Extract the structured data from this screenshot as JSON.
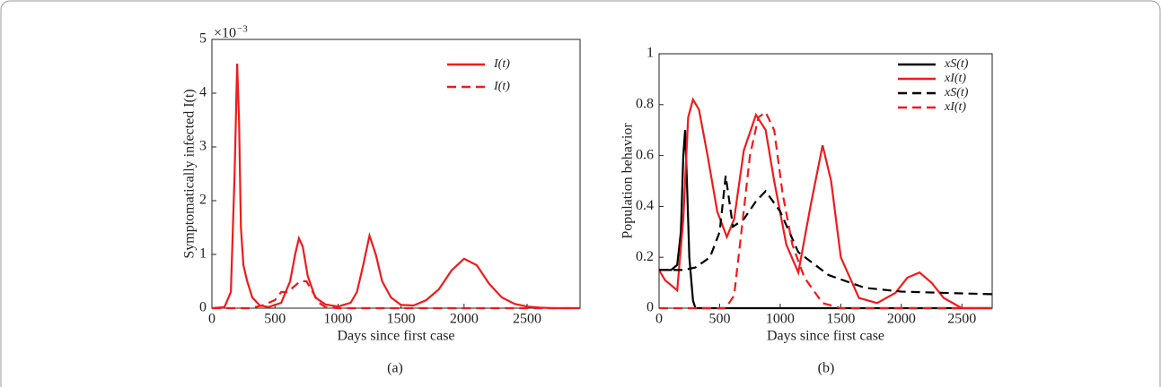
{
  "chart_data": [
    {
      "type": "line",
      "title": "(a)",
      "xlabel": "Days since first case",
      "ylabel": "Symptomatically infected I(t)",
      "multiplier": "×10",
      "multiplier_exponent": "−3",
      "xlim": [
        0,
        2920
      ],
      "xticks": [
        0,
        500,
        1000,
        1500,
        2000,
        2500
      ],
      "ylim": [
        0,
        5
      ],
      "yticks": [
        0,
        1,
        2,
        3,
        4,
        5
      ],
      "legend": "upper right",
      "series": [
        {
          "name": "I(t)",
          "color": "#ee1c1c",
          "linestyle": "solid",
          "x": [
            0,
            100,
            150,
            180,
            200,
            215,
            230,
            250,
            280,
            320,
            380,
            450,
            550,
            620,
            660,
            690,
            720,
            760,
            820,
            900,
            1000,
            1100,
            1150,
            1200,
            1250,
            1300,
            1350,
            1420,
            1500,
            1600,
            1700,
            1800,
            1900,
            2000,
            2100,
            2200,
            2300,
            2400,
            2500,
            2600,
            2700,
            2800,
            2920
          ],
          "values": [
            0,
            0.02,
            0.3,
            2.5,
            4.55,
            3.5,
            1.5,
            0.8,
            0.5,
            0.2,
            0.05,
            0.02,
            0.1,
            0.5,
            1.0,
            1.3,
            1.15,
            0.6,
            0.2,
            0.07,
            0.03,
            0.1,
            0.3,
            0.8,
            1.35,
            1.0,
            0.5,
            0.2,
            0.06,
            0.05,
            0.15,
            0.35,
            0.7,
            0.92,
            0.8,
            0.45,
            0.2,
            0.08,
            0.03,
            0.01,
            0,
            0,
            0
          ]
        },
        {
          "name": "I(t)",
          "color": "#ee1c1c",
          "linestyle": "dashed",
          "x": [
            0,
            300,
            400,
            500,
            550,
            600,
            650,
            700,
            750,
            800,
            850,
            900,
            1000,
            2920
          ],
          "values": [
            0,
            0,
            0.05,
            0.15,
            0.3,
            0.3,
            0.4,
            0.5,
            0.5,
            0.3,
            0.1,
            0.02,
            0,
            0
          ]
        }
      ]
    },
    {
      "type": "line",
      "title": "(b)",
      "xlabel": "Days since first case",
      "ylabel": "Population behavior",
      "xlim": [
        0,
        2750
      ],
      "xticks": [
        0,
        500,
        1000,
        1500,
        2000,
        2500
      ],
      "ylim": [
        0,
        1
      ],
      "yticks": [
        0,
        0.2,
        0.4,
        0.6,
        0.8,
        1
      ],
      "legend": "upper right",
      "series": [
        {
          "name": "xS(t)",
          "color": "#000000",
          "linestyle": "solid",
          "x": [
            0,
            100,
            150,
            180,
            200,
            215,
            230,
            250,
            280,
            300,
            2750
          ],
          "values": [
            0.15,
            0.15,
            0.17,
            0.3,
            0.6,
            0.7,
            0.5,
            0.2,
            0.03,
            0,
            0
          ]
        },
        {
          "name": "xI(t)",
          "color": "#ee1c1c",
          "linestyle": "solid",
          "x": [
            0,
            50,
            100,
            150,
            200,
            240,
            280,
            330,
            400,
            480,
            560,
            620,
            700,
            800,
            880,
            950,
            1050,
            1150,
            1250,
            1350,
            1420,
            1500,
            1650,
            1800,
            1950,
            2050,
            2150,
            2250,
            2350,
            2500,
            2750
          ],
          "values": [
            0.15,
            0.11,
            0.09,
            0.07,
            0.35,
            0.75,
            0.82,
            0.78,
            0.6,
            0.38,
            0.28,
            0.35,
            0.62,
            0.76,
            0.7,
            0.5,
            0.25,
            0.14,
            0.4,
            0.64,
            0.5,
            0.2,
            0.04,
            0.02,
            0.06,
            0.12,
            0.14,
            0.1,
            0.04,
            0,
            0
          ]
        },
        {
          "name": "xS(t)",
          "color": "#000000",
          "linestyle": "dashed",
          "x": [
            0,
            200,
            300,
            420,
            500,
            550,
            610,
            700,
            800,
            880,
            1000,
            1150,
            1400,
            1700,
            2000,
            2500,
            2750
          ],
          "values": [
            0.15,
            0.15,
            0.16,
            0.2,
            0.3,
            0.52,
            0.32,
            0.35,
            0.42,
            0.46,
            0.38,
            0.22,
            0.13,
            0.08,
            0.065,
            0.058,
            0.055
          ]
        },
        {
          "name": "xI(t)",
          "color": "#ee1c1c",
          "linestyle": "dashed",
          "x": [
            0,
            550,
            620,
            680,
            750,
            820,
            880,
            950,
            1020,
            1100,
            1200,
            1350,
            1500,
            2750
          ],
          "values": [
            0,
            0,
            0.05,
            0.3,
            0.6,
            0.75,
            0.77,
            0.7,
            0.45,
            0.25,
            0.12,
            0.02,
            0,
            0
          ]
        }
      ]
    }
  ]
}
